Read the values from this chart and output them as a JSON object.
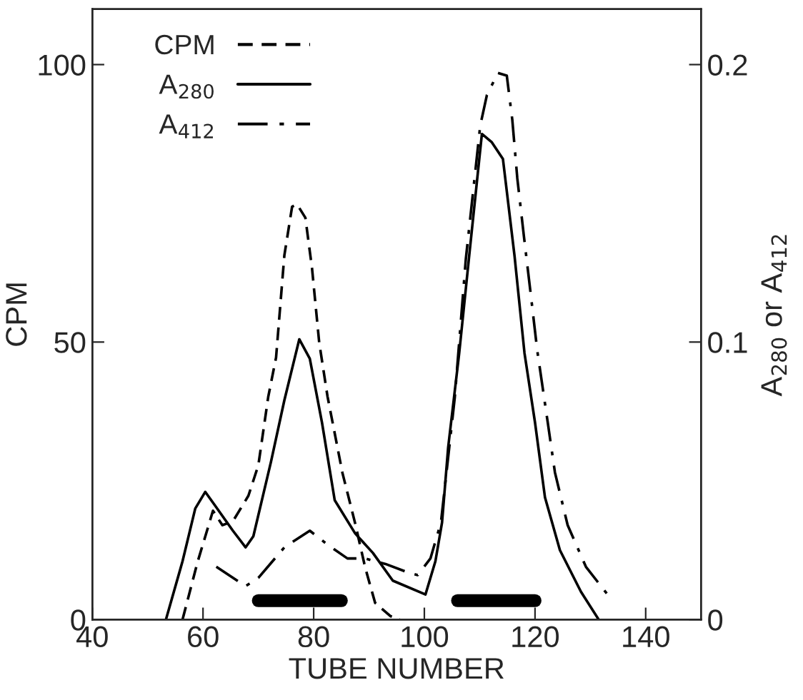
{
  "chart_data": {
    "type": "line",
    "xlabel": "TUBE NUMBER",
    "ylabel": "CPM",
    "y2label": "A$_{280}$ or A$_{412}$",
    "xlim": [
      40,
      150
    ],
    "xticks": [
      40,
      60,
      80,
      100,
      120,
      140
    ],
    "ylim": [
      0,
      110
    ],
    "yticks": [
      0,
      50,
      100
    ],
    "y2lim": [
      0,
      0.22
    ],
    "y2ticks": [
      0,
      0.1,
      0.2
    ],
    "legend": "top left",
    "grid": false,
    "series": [
      {
        "name": "CPM",
        "color": "#000000",
        "line_style": "dashed",
        "x": [
          56.3,
          59,
          61.8,
          63.5,
          65.4,
          68.2,
          70,
          71.8,
          73.2,
          74.7,
          76.1,
          77,
          78.5,
          79.7,
          81,
          82.5,
          85.2,
          87.5,
          89.3,
          91.1,
          93.9,
          95.5
        ],
        "values": [
          0,
          10.3,
          19.6,
          17,
          17.7,
          22.3,
          27.8,
          40.2,
          47.2,
          65.6,
          74.4,
          74.8,
          72.4,
          63.3,
          49.9,
          40.2,
          26.4,
          17.3,
          9.4,
          3.0,
          0.6,
          0
        ]
      },
      {
        "name": "A$_{280}$",
        "color": "#000000",
        "line_style": "solid",
        "axis": "y2",
        "x": [
          53.3,
          56.3,
          58.6,
          60.4,
          62.2,
          65.4,
          67.7,
          69.1,
          72.3,
          74.7,
          77.4,
          79.3,
          81.5,
          83.8,
          87.5,
          90.7,
          94.3,
          100.2,
          102,
          103.2,
          104.3,
          106.3,
          108.1,
          110.4,
          112.2,
          114.2,
          116.3,
          118.1,
          120,
          121.8,
          124.5,
          128.3,
          131.5
        ],
        "values": [
          0,
          0.021,
          0.04,
          0.046,
          0.041,
          0.032,
          0.026,
          0.03,
          0.057,
          0.079,
          0.101,
          0.094,
          0.071,
          0.043,
          0.031,
          0.024,
          0.014,
          0.009,
          0.021,
          0.035,
          0.062,
          0.096,
          0.131,
          0.175,
          0.172,
          0.166,
          0.131,
          0.096,
          0.071,
          0.044,
          0.025,
          0.01,
          0
        ]
      },
      {
        "name": "A$_{412}$",
        "color": "#000000",
        "line_style": "dashdot",
        "axis": "y2",
        "x": [
          62.4,
          67.7,
          70,
          74.7,
          79.3,
          82.5,
          86.1,
          89.3,
          93,
          97,
          98.8,
          101.1,
          103,
          105.5,
          107.5,
          110.1,
          111.3,
          113.3,
          114.9,
          115.9,
          116.8,
          118,
          119.3,
          120.4,
          122.3,
          123.6,
          125.9,
          129.2,
          133.5
        ],
        "values": [
          0.019,
          0.012,
          0.015,
          0.026,
          0.032,
          0.027,
          0.022,
          0.022,
          0.02,
          0.017,
          0.016,
          0.022,
          0.035,
          0.08,
          0.13,
          0.178,
          0.189,
          0.197,
          0.196,
          0.18,
          0.159,
          0.138,
          0.116,
          0.097,
          0.071,
          0.053,
          0.034,
          0.019,
          0.008
        ]
      },
      {
        "color": "#000000",
        "line_style": "solid",
        "x": [
          70,
          85
        ],
        "values": [
          3.4,
          3.4
        ]
      },
      {
        "color": "#000000",
        "line_style": "solid",
        "x": [
          106,
          120
        ],
        "values": [
          3.4,
          3.4
        ]
      }
    ]
  }
}
